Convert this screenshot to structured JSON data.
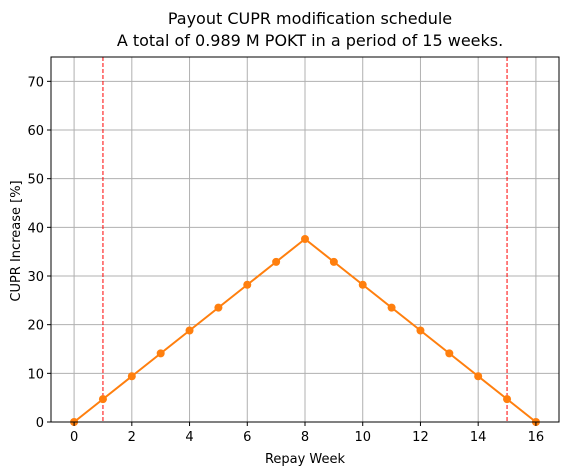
{
  "chart_data": {
    "type": "line",
    "title": "Payout CUPR modification schedule",
    "subtitle": "A total of 0.989 M POKT in a period of 15 weeks.",
    "xlabel": "Repay Week",
    "ylabel": "CUPR Increase [%]",
    "xlim": [
      -0.8,
      16.8
    ],
    "ylim": [
      0,
      75
    ],
    "xticks": [
      0,
      2,
      4,
      6,
      8,
      10,
      12,
      14,
      16
    ],
    "yticks": [
      0,
      10,
      20,
      30,
      40,
      50,
      60,
      70
    ],
    "grid": true,
    "series": [
      {
        "color": "#ff7f0e",
        "x": [
          0,
          1,
          2,
          3,
          4,
          5,
          6,
          7,
          8,
          9,
          10,
          11,
          12,
          13,
          14,
          15,
          16
        ],
        "y": [
          0,
          4.7,
          9.4,
          14.1,
          18.8,
          23.5,
          28.2,
          32.9,
          37.6,
          32.9,
          28.2,
          23.5,
          18.8,
          14.1,
          9.4,
          4.7,
          0
        ]
      }
    ],
    "vlines": [
      {
        "x": 1,
        "color": "#ff0000",
        "style": "dashed"
      },
      {
        "x": 15,
        "color": "#ff0000",
        "style": "dashed"
      }
    ]
  }
}
